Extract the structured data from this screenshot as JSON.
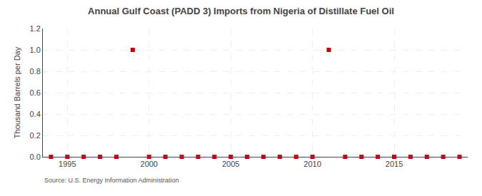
{
  "chart_data": {
    "type": "scatter",
    "title": "Annual Gulf Coast (PADD 3) Imports from Nigeria of Distillate Fuel Oil",
    "y_label": "Thousand Barrels per Day",
    "annotation": "Source: U.S. Energy Information Administration",
    "x": [
      1994,
      1995,
      1996,
      1997,
      1998,
      1999,
      2000,
      2001,
      2002,
      2003,
      2004,
      2005,
      2006,
      2007,
      2008,
      2009,
      2010,
      2011,
      2012,
      2013,
      2014,
      2015,
      2016,
      2017,
      2018,
      2019
    ],
    "values": [
      0,
      0,
      0,
      0,
      0,
      1,
      0,
      0,
      0,
      0,
      0,
      0,
      0,
      0,
      0,
      0,
      0,
      1,
      0,
      0,
      0,
      0,
      0,
      0,
      0,
      0
    ],
    "color": "#cc0000",
    "marker": "square",
    "xlim": [
      1993.5,
      2019.5
    ],
    "xticks": [
      1995,
      2000,
      2005,
      2010,
      2015
    ],
    "ylim": [
      0,
      1.2
    ],
    "yticks": [
      {
        "value": 0,
        "label": "0.0"
      },
      0.2,
      0.4,
      0.6,
      0.8,
      {
        "value": 1,
        "label": "1.0"
      },
      1.2
    ],
    "grid": true
  }
}
